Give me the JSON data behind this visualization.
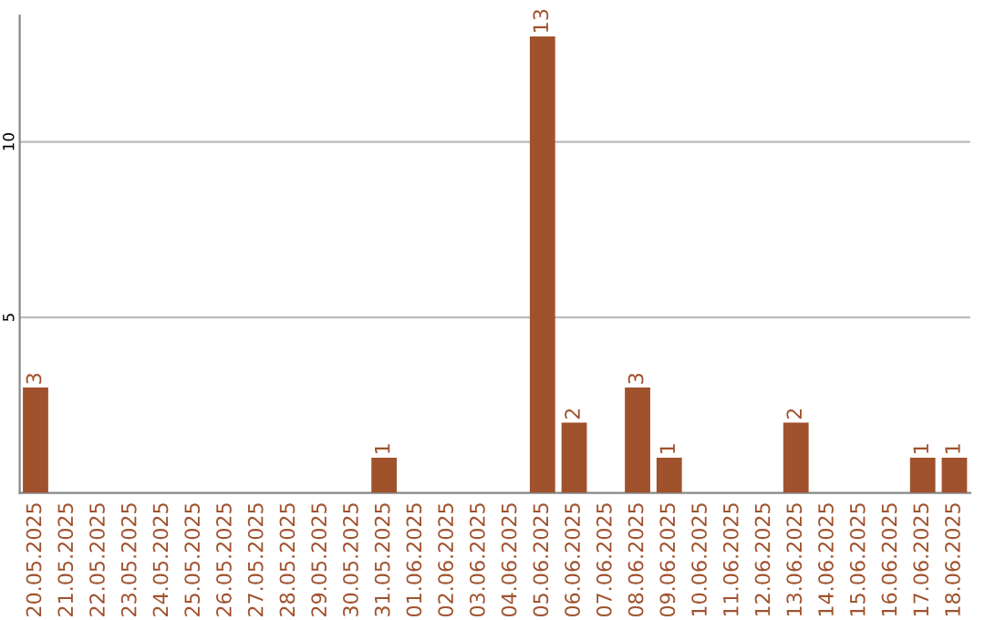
{
  "chart_data": {
    "type": "bar",
    "categories": [
      "20.05.2025",
      "21.05.2025",
      "22.05.2025",
      "23.05.2025",
      "24.05.2025",
      "25.05.2025",
      "26.05.2025",
      "27.05.2025",
      "28.05.2025",
      "29.05.2025",
      "30.05.2025",
      "31.05.2025",
      "01.06.2025",
      "02.06.2025",
      "03.06.2025",
      "04.06.2025",
      "05.06.2025",
      "06.06.2025",
      "07.06.2025",
      "08.06.2025",
      "09.06.2025",
      "10.06.2025",
      "11.06.2025",
      "12.06.2025",
      "13.06.2025",
      "14.06.2025",
      "15.06.2025",
      "16.06.2025",
      "17.06.2025",
      "18.06.2025"
    ],
    "values": [
      3,
      0,
      0,
      0,
      0,
      0,
      0,
      0,
      0,
      0,
      0,
      1,
      0,
      0,
      0,
      0,
      13,
      2,
      0,
      3,
      1,
      0,
      0,
      0,
      2,
      0,
      0,
      0,
      1,
      1
    ],
    "value_labels": [
      "3",
      null,
      null,
      null,
      null,
      null,
      null,
      null,
      null,
      null,
      null,
      "1",
      null,
      null,
      null,
      null,
      "13",
      "2",
      null,
      "3",
      "1",
      null,
      null,
      null,
      "2",
      null,
      null,
      null,
      "1",
      "1"
    ],
    "color": "#a0522d",
    "ylim": [
      0,
      13.6
    ],
    "yticks": [
      5,
      10
    ],
    "grid": "y"
  }
}
